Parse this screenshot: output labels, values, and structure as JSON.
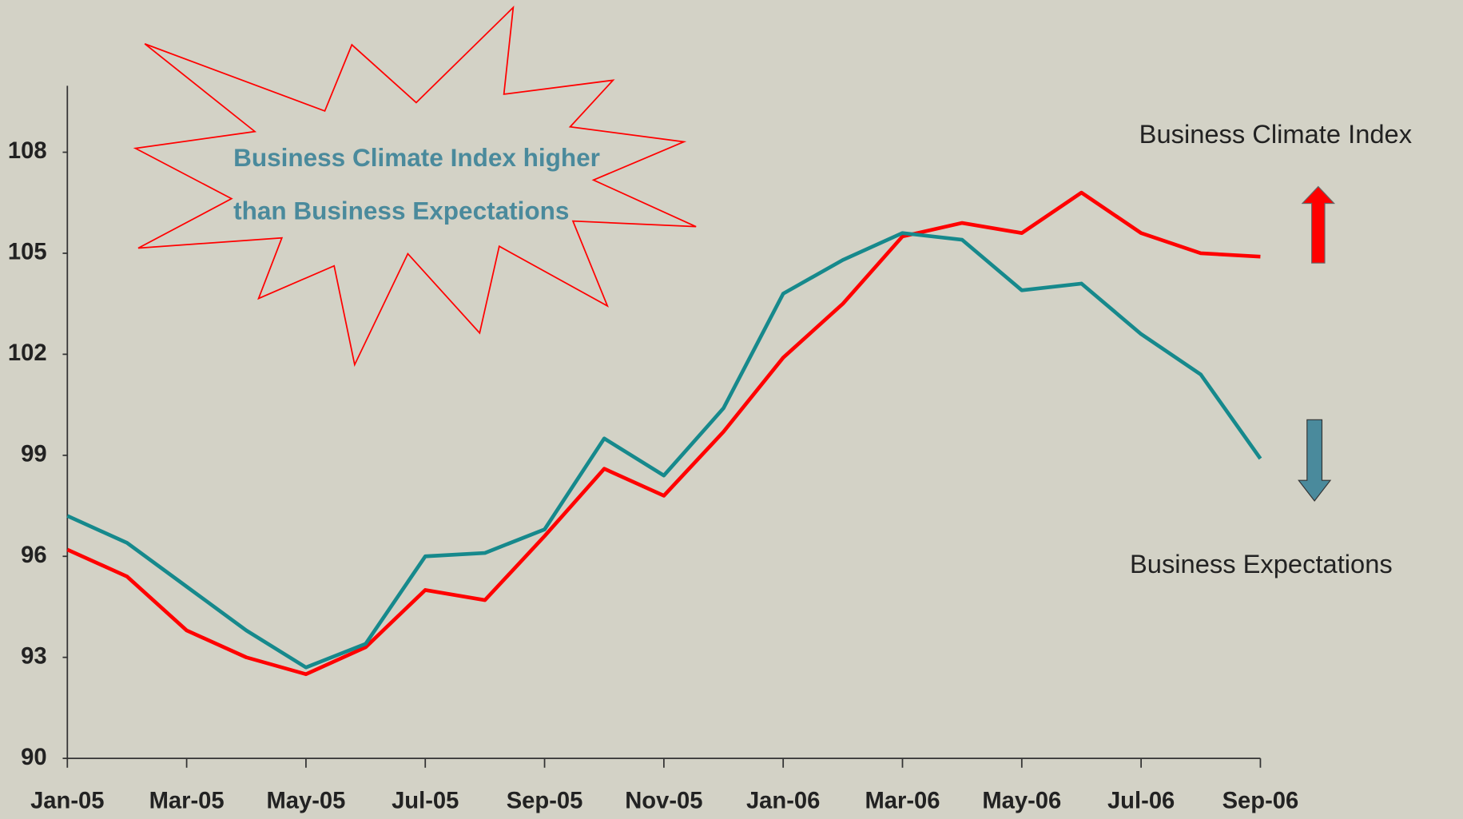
{
  "chart_data": {
    "type": "line",
    "annotations": [
      "Business Climate Index higher",
      "than Business Expectations"
    ],
    "categories": [
      "Jan-05",
      null,
      "Mar-05",
      null,
      "May-05",
      null,
      "Jul-05",
      null,
      "Sep-05",
      null,
      "Nov-05",
      null,
      "Jan-06",
      null,
      "Mar-06",
      null,
      "May-06",
      null,
      "Jul-06",
      null,
      "Sep-06"
    ],
    "series": [
      {
        "name": "Business Climate Index",
        "color": "#ff0000",
        "values": [
          96.2,
          95.4,
          93.8,
          93.0,
          92.5,
          93.3,
          95.0,
          94.7,
          96.6,
          98.6,
          97.8,
          99.7,
          101.9,
          103.5,
          105.5,
          105.9,
          105.6,
          106.8,
          105.6,
          105.0,
          104.9
        ]
      },
      {
        "name": "Business Expectations",
        "color": "#16898c",
        "values": [
          97.2,
          96.4,
          95.1,
          93.8,
          92.7,
          93.4,
          96.0,
          96.1,
          96.8,
          99.5,
          98.4,
          100.4,
          103.8,
          104.8,
          105.6,
          105.4,
          103.9,
          104.1,
          102.6,
          101.4,
          98.9
        ]
      }
    ],
    "ylim": [
      90,
      110
    ],
    "yticks": [
      90,
      93,
      96,
      99,
      102,
      105,
      108
    ],
    "grid": false
  }
}
